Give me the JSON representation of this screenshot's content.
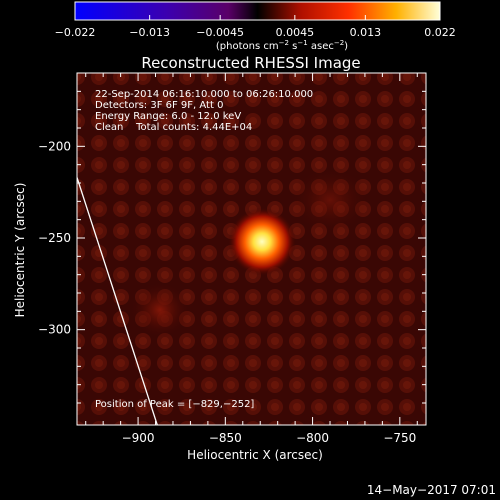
{
  "colorbar": {
    "ticks": [
      -0.022,
      -0.013,
      -0.0045,
      0.0045,
      0.013,
      0.022
    ],
    "tick_labels": [
      "−0.022",
      "−0.013",
      "−0.0045",
      "0.0045",
      "0.013",
      "0.022"
    ],
    "unit_main": "(photons cm",
    "unit_exp1": "−2",
    "unit_mid1": " s",
    "unit_exp2": "−1",
    "unit_mid2": " asec",
    "unit_exp3": "−2",
    "unit_end": ")",
    "range": [
      -0.022,
      0.022
    ]
  },
  "chart_data": {
    "type": "heatmap",
    "title": "Reconstructed RHESSI Image",
    "xlabel": "Heliocentric X (arcsec)",
    "ylabel": "Heliocentric Y (arcsec)",
    "xlim": [
      -935,
      -735
    ],
    "ylim": [
      -352,
      -160
    ],
    "x_ticks": [
      -900,
      -850,
      -800,
      -750
    ],
    "x_tick_labels": [
      "−900",
      "−850",
      "−800",
      "−750"
    ],
    "y_ticks": [
      -200,
      -250,
      -300
    ],
    "y_tick_labels": [
      "−200",
      "−250",
      "−300"
    ],
    "peak": {
      "x": -829,
      "y": -252
    },
    "limb_line": [
      [
        -935,
        -217
      ],
      [
        -889,
        -352
      ]
    ],
    "info_lines": [
      "22-Sep-2014 06:16:10.000 to 06:26:10.000",
      "Detectors: 3F 6F 9F, Att 0",
      "Energy Range: 6.0 - 12.0 keV",
      "Clean    Total counts: 4.44E+04"
    ],
    "peak_label": "Position of Peak = [−829,−252]"
  },
  "footer": {
    "date": "14−May−2017 07:01"
  }
}
